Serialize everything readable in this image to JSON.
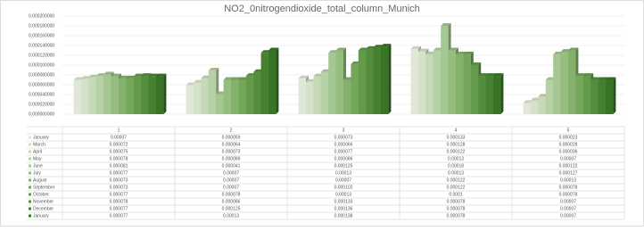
{
  "chart_data": {
    "type": "bar3d",
    "title": "NO2_0nitrogendioxide_total_column_Munich",
    "categories": [
      "1",
      "2",
      "3",
      "4",
      "5"
    ],
    "ylim": [
      0,
      0.0002
    ],
    "yticks": [
      {
        "value": 0,
        "label": "0.000000000"
      },
      {
        "value": 2e-05,
        "label": "0.000020000"
      },
      {
        "value": 4e-05,
        "label": "0.000040000"
      },
      {
        "value": 6e-05,
        "label": "0.000060000"
      },
      {
        "value": 8e-05,
        "label": "0.000080000"
      },
      {
        "value": 0.0001,
        "label": "0.000100000"
      },
      {
        "value": 0.00012,
        "label": "0.000120000"
      },
      {
        "value": 0.00014,
        "label": "0.000140000"
      },
      {
        "value": 0.00016,
        "label": "0.000160000"
      },
      {
        "value": 0.00018,
        "label": "0.000180000"
      },
      {
        "value": 0.0002,
        "label": "0.000200000"
      }
    ],
    "grid": true,
    "series": [
      {
        "name": "January",
        "color": "#dfe8d8",
        "values": [
          7e-05,
          5.9e-05,
          7.3e-05,
          0.000133,
          2.3e-05
        ]
      },
      {
        "name": "March",
        "color": "#d3e2c9",
        "values": [
          7.2e-05,
          6.4e-05,
          6.6e-05,
          0.000128,
          2.8e-05
        ]
      },
      {
        "name": "April",
        "color": "#c6dab8",
        "values": [
          7.5e-05,
          7.3e-05,
          7.7e-05,
          0.000122,
          3.6e-05
        ]
      },
      {
        "name": "May",
        "color": "#b6d1a5",
        "values": [
          7.8e-05,
          8.9e-05,
          8.6e-05,
          0.00013,
          7e-05
        ]
      },
      {
        "name": "June",
        "color": "#a5c791",
        "values": [
          8.1e-05,
          4.1e-05,
          0.000125,
          0.00018,
          0.000122
        ]
      },
      {
        "name": "July",
        "color": "#95bd7e",
        "values": [
          7.7e-05,
          7e-05,
          0.00013,
          0.00013,
          0.000127
        ]
      },
      {
        "name": "August",
        "color": "#84b26c",
        "values": [
          7.3e-05,
          7e-05,
          7e-05,
          0.000122,
          0.00013
        ]
      },
      {
        "name": "September",
        "color": "#74a75b",
        "values": [
          7.3e-05,
          7e-05,
          0.000102,
          0.000122,
          7.8e-05
        ]
      },
      {
        "name": "October",
        "color": "#639b4b",
        "values": [
          7.7e-05,
          7.8e-05,
          0.00013,
          0.0001,
          7.8e-05
        ]
      },
      {
        "name": "November",
        "color": "#548e3d",
        "values": [
          7.8e-05,
          8.6e-05,
          0.000133,
          7.8e-05,
          7e-05
        ]
      },
      {
        "name": "December",
        "color": "#468131",
        "values": [
          7.7e-05,
          0.000125,
          0.000136,
          7.8e-05,
          7e-05
        ]
      },
      {
        "name": "January",
        "color": "#387326",
        "values": [
          7.7e-05,
          0.00013,
          0.000138,
          7.8e-05,
          7e-05
        ]
      }
    ]
  }
}
